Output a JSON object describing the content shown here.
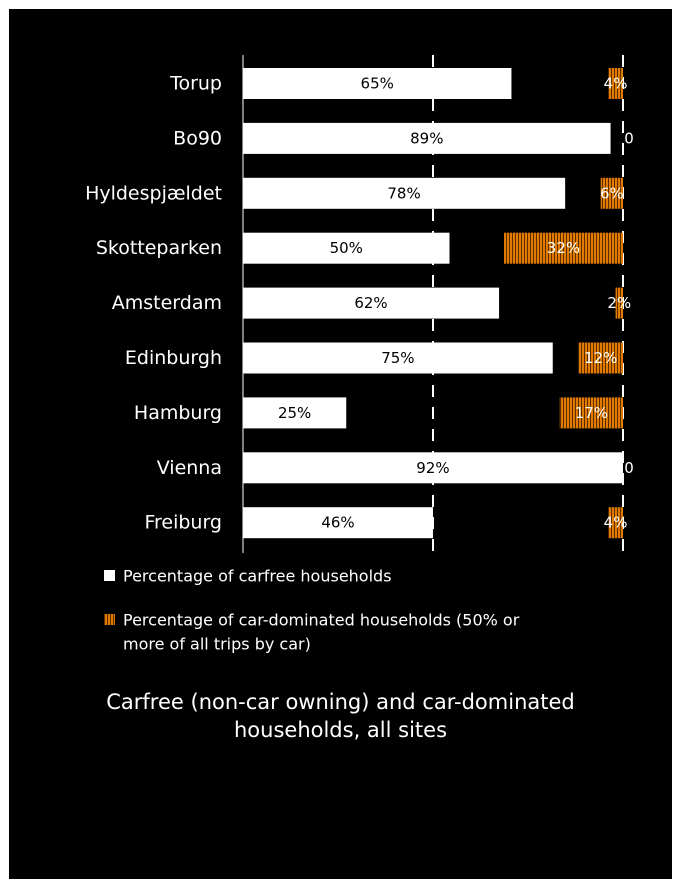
{
  "chart_data": {
    "type": "bar",
    "orientation": "horizontal",
    "categories": [
      "Torup",
      "Bo90",
      "Hyldespjældet",
      "Skotteparken",
      "Amsterdam",
      "Edinburgh",
      "Hamburg",
      "Vienna",
      "Freiburg"
    ],
    "series": [
      {
        "name": "Percentage of carfree households",
        "values": [
          65,
          89,
          78,
          50,
          62,
          75,
          25,
          92,
          46
        ],
        "labels": [
          "65%",
          "89%",
          "78%",
          "50%",
          "62%",
          "75%",
          "25%",
          "92%",
          "46%"
        ],
        "color": "#ffffff"
      },
      {
        "name": "Percentage of car-dominated households (50% or more of all trips by car)",
        "values": [
          4,
          0,
          6,
          32,
          2,
          12,
          17,
          0,
          4
        ],
        "labels": [
          "4%",
          "0",
          "6%",
          "32%",
          "2%",
          "12%",
          "17%",
          "0",
          "4%"
        ],
        "color": "#e07b00"
      }
    ],
    "legend_position": "bottom",
    "legend_lines": [
      [
        "Percentage of carfree households"
      ],
      [
        "Percentage of car-dominated households (50% or more of",
        "more of all trips by car)"
      ]
    ],
    "caption_lines": [
      "Carfree (non-car owning) and car-dominated",
      "households, all sites"
    ],
    "background": "#000000"
  }
}
